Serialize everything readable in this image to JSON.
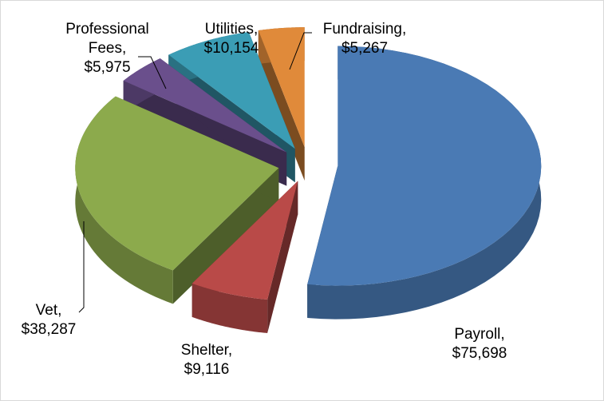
{
  "chart_data": {
    "type": "pie",
    "categories": [
      "Payroll,",
      "Shelter,",
      "Vet,",
      "Professional Fees,",
      "Utilities,",
      "Fundraising,"
    ],
    "values": [
      75698,
      9116,
      38287,
      5975,
      10154,
      5267
    ],
    "value_labels": [
      "$75,698",
      "$9,116",
      "$38,287",
      "$5,975",
      "$10,154",
      "$5,267"
    ],
    "colors": [
      "#4a7ab4",
      "#b94a48",
      "#8caa4c",
      "#6a4f8c",
      "#3b9db5",
      "#e08a3a"
    ]
  }
}
